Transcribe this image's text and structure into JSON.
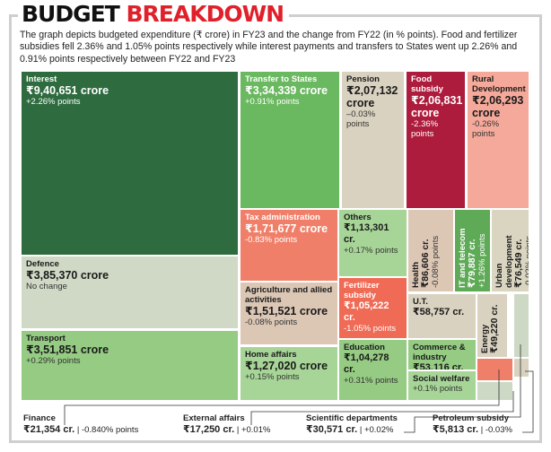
{
  "title": {
    "part1": "BUDGET",
    "part2": "BREAKDOWN"
  },
  "description": "The graph depicts budgeted expenditure (₹ crore) in FY23 and the change from FY22 (in % points). Food and fertilizer subsidies fell 2.36% and 1.05% points respectively while interest payments and transfers to States went up 2.26% and 0.91% points respectively between FY22 and FY23",
  "colors": {
    "frame": "#cfcfcf",
    "title_accent": "#e0202a",
    "dark_green": "#2e6b3f",
    "mid_green": "#6ab85f",
    "light_green": "#95cb83",
    "pale_green": "#a7d597",
    "neutral": "#d9d2c0",
    "neutral_green": "#d0d9c5",
    "tan": "#dcc7b5",
    "crimson": "#ad1c3c",
    "salmon": "#f5a99a",
    "coral": "#f07f69",
    "red_coral": "#ef6b56"
  },
  "chart_data": {
    "type": "treemap",
    "title": "BUDGET BREAKDOWN",
    "value_unit": "₹ crore",
    "change_unit": "% points",
    "items": [
      {
        "name": "Interest",
        "value": 940651,
        "value_label": "₹9,40,651 crore",
        "change": 2.26,
        "change_label": "+2.26% points",
        "color": "#2e6b3f",
        "text": "light"
      },
      {
        "name": "Defence",
        "value": 385370,
        "value_label": "₹3,85,370 crore",
        "change": 0,
        "change_label": "No change",
        "color": "#d0d9c5",
        "text": "dark"
      },
      {
        "name": "Transport",
        "value": 351851,
        "value_label": "₹3,51,851 crore",
        "change": 0.29,
        "change_label": "+0.29% points",
        "color": "#95cb83",
        "text": "dark"
      },
      {
        "name": "Transfer to States",
        "value": 334339,
        "value_label": "₹3,34,339 crore",
        "change": 0.91,
        "change_label": "+0.91% points",
        "color": "#6ab85f",
        "text": "light"
      },
      {
        "name": "Pension",
        "value": 207132,
        "value_label": "₹2,07,132 crore",
        "change": -0.03,
        "change_label": "–0.03% points",
        "color": "#d9d2c0",
        "text": "dark"
      },
      {
        "name": "Food subsidy",
        "value": 206831,
        "value_label": "₹2,06,831 crore",
        "change": -2.36,
        "change_label": "-2.36% points",
        "color": "#ad1c3c",
        "text": "light"
      },
      {
        "name": "Rural Development",
        "value": 206293,
        "value_label": "₹2,06,293 crore",
        "change": -0.26,
        "change_label": "-0.26% points",
        "color": "#f5a99a",
        "text": "dark"
      },
      {
        "name": "Tax administration",
        "value": 171677,
        "value_label": "₹1,71,677 crore",
        "change": -0.83,
        "change_label": "-0.83% points",
        "color": "#f07f69",
        "text": "light"
      },
      {
        "name": "Agriculture and allied activities",
        "value": 151521,
        "value_label": "₹1,51,521 crore",
        "change": -0.08,
        "change_label": "-0.08% points",
        "color": "#dcc7b5",
        "text": "dark"
      },
      {
        "name": "Home affairs",
        "value": 127020,
        "value_label": "₹1,27,020 crore",
        "change": 0.15,
        "change_label": "+0.15% points",
        "color": "#a7d597",
        "text": "dark"
      },
      {
        "name": "Others",
        "value": 113301,
        "value_label": "₹1,13,301 cr.",
        "change": 0.17,
        "change_label": "+0.17% points",
        "color": "#a7d597",
        "text": "dark"
      },
      {
        "name": "Fertilizer subsidy",
        "value": 105222,
        "value_label": "₹1,05,222 cr.",
        "change": -1.05,
        "change_label": "-1.05% points",
        "color": "#ef6b56",
        "text": "light"
      },
      {
        "name": "Education",
        "value": 104278,
        "value_label": "₹1,04,278 cr.",
        "change": 0.31,
        "change_label": "+0.31% points",
        "color": "#95cb83",
        "text": "dark"
      },
      {
        "name": "Health",
        "value": 86606,
        "value_label": "₹86,606 cr.",
        "change": -0.08,
        "change_label": "-0.08% points",
        "color": "#dcc7b5",
        "text": "dark"
      },
      {
        "name": "IT and telecom",
        "value": 79887,
        "value_label": "₹79,887 cr.",
        "change": 1.26,
        "change_label": "+1.26% points",
        "color": "#5faa57",
        "text": "light"
      },
      {
        "name": "Urban development",
        "value": 76549,
        "value_label": "₹76,549 cr.",
        "change": -0.02,
        "change_label": "-0.02% points",
        "color": "#d9d5c0",
        "text": "dark"
      },
      {
        "name": "U.T.",
        "value": 58757,
        "value_label": "₹58,757 cr.",
        "change": null,
        "change_label": "",
        "color": "#d9d2c0",
        "text": "dark"
      },
      {
        "name": "Commerce & industry",
        "value": 53116,
        "value_label": "₹53,116 cr.",
        "change": null,
        "change_label": "",
        "color": "#95cb83",
        "text": "dark"
      },
      {
        "name": "Social welfare",
        "value": null,
        "value_label": "",
        "change": 0.1,
        "change_label": "+0.1% points",
        "color": "#a7d597",
        "text": "dark"
      },
      {
        "name": "Energy",
        "value": 49220,
        "value_label": "₹49,220 cr.",
        "change": null,
        "change_label": "",
        "color": "#d9d2c0",
        "text": "dark"
      },
      {
        "name": "Finance",
        "value": 21354,
        "value_label": "₹21,354 cr.",
        "change": -0.84,
        "change_label": "-0.840% points",
        "color": "#f07f69",
        "text": "dark"
      },
      {
        "name": "External affairs",
        "value": 17250,
        "value_label": "₹17,250 cr.",
        "change": 0.01,
        "change_label": "+0.01%",
        "color": "#cdd9c5",
        "text": "dark"
      },
      {
        "name": "Scientific departments",
        "value": 30571,
        "value_label": "₹30,571 cr.",
        "change": 0.02,
        "change_label": "+0.02%",
        "color": "#cdd9c5",
        "text": "dark"
      },
      {
        "name": "Petroleum subsidy",
        "value": 5813,
        "value_label": "₹5,813 cr.",
        "change": -0.03,
        "change_label": "-0.03%",
        "color": "#d9d2c0",
        "text": "dark"
      }
    ]
  },
  "callouts": [
    {
      "name": "Finance",
      "value_label": "₹21,354 cr.",
      "sep": "|",
      "change_label": "-0.840% points"
    },
    {
      "name": "External affairs",
      "value_label": "₹17,250 cr.",
      "sep": "|",
      "change_label": "+0.01%"
    },
    {
      "name": "Scientific departments",
      "value_label": "₹30,571 cr.",
      "sep": "|",
      "change_label": "+0.02%"
    },
    {
      "name": "Petroleum subsidy",
      "value_label": "₹5,813 cr.",
      "sep": "|",
      "change_label": "-0.03%"
    }
  ]
}
